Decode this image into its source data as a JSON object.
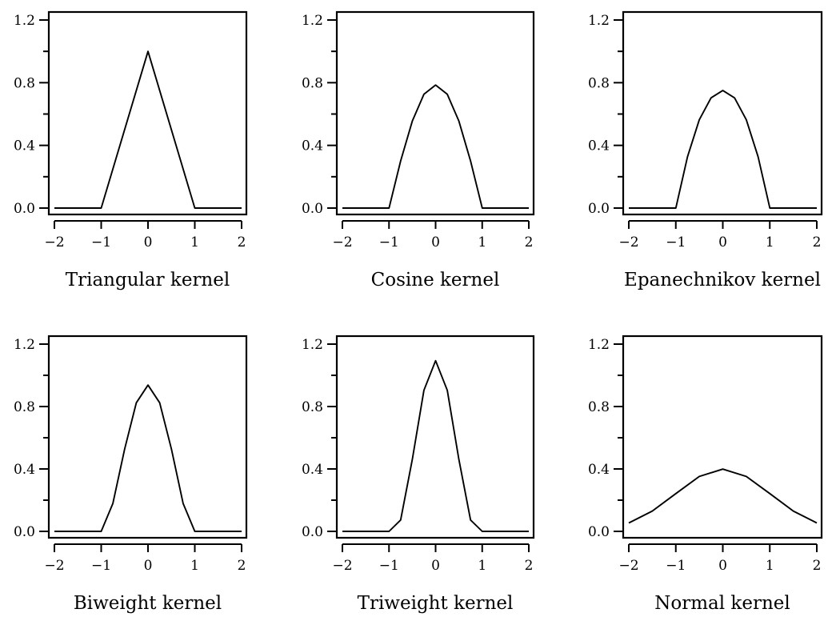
{
  "chart_data": [
    {
      "type": "line",
      "title": "Triangular kernel",
      "xlim": [
        -2,
        2
      ],
      "ylim": [
        0,
        1.2
      ],
      "xticks": [
        "−2",
        "−1",
        "0",
        "1",
        "2"
      ],
      "yticks": [
        "0.0",
        "0.4",
        "0.8",
        "1.2"
      ],
      "series": [
        {
          "x": [
            -2,
            -1,
            0,
            1,
            2
          ],
          "y": [
            0,
            0,
            1.0,
            0,
            0
          ]
        }
      ]
    },
    {
      "type": "line",
      "title": "Cosine kernel",
      "xlim": [
        -2,
        2
      ],
      "ylim": [
        0,
        1.2
      ],
      "xticks": [
        "−2",
        "−1",
        "0",
        "1",
        "2"
      ],
      "yticks": [
        "0.0",
        "0.4",
        "0.8",
        "1.2"
      ],
      "series": [
        {
          "x": [
            -2,
            -1,
            -0.75,
            -0.5,
            -0.25,
            0,
            0.25,
            0.5,
            0.75,
            1,
            2
          ],
          "y": [
            0,
            0,
            0.301,
            0.555,
            0.726,
            0.785,
            0.726,
            0.555,
            0.301,
            0,
            0
          ]
        }
      ]
    },
    {
      "type": "line",
      "title": "Epanechnikov kernel",
      "xlim": [
        -2,
        2
      ],
      "ylim": [
        0,
        1.2
      ],
      "xticks": [
        "−2",
        "−1",
        "0",
        "1",
        "2"
      ],
      "yticks": [
        "0.0",
        "0.4",
        "0.8",
        "1.2"
      ],
      "series": [
        {
          "x": [
            -2,
            -1,
            -0.75,
            -0.5,
            -0.25,
            0,
            0.25,
            0.5,
            0.75,
            1,
            2
          ],
          "y": [
            0,
            0,
            0.328,
            0.563,
            0.703,
            0.75,
            0.703,
            0.563,
            0.328,
            0,
            0
          ]
        }
      ]
    },
    {
      "type": "line",
      "title": "Biweight kernel",
      "xlim": [
        -2,
        2
      ],
      "ylim": [
        0,
        1.2
      ],
      "xticks": [
        "−2",
        "−1",
        "0",
        "1",
        "2"
      ],
      "yticks": [
        "0.0",
        "0.4",
        "0.8",
        "1.2"
      ],
      "series": [
        {
          "x": [
            -2,
            -1,
            -0.75,
            -0.5,
            -0.25,
            0,
            0.25,
            0.5,
            0.75,
            1,
            2
          ],
          "y": [
            0,
            0,
            0.179,
            0.527,
            0.824,
            0.9375,
            0.824,
            0.527,
            0.179,
            0,
            0
          ]
        }
      ]
    },
    {
      "type": "line",
      "title": "Triweight kernel",
      "xlim": [
        -2,
        2
      ],
      "ylim": [
        0,
        1.2
      ],
      "xticks": [
        "−2",
        "−1",
        "0",
        "1",
        "2"
      ],
      "yticks": [
        "0.0",
        "0.4",
        "0.8",
        "1.2"
      ],
      "series": [
        {
          "x": [
            -2,
            -1,
            -0.75,
            -0.5,
            -0.25,
            0,
            0.25,
            0.5,
            0.75,
            1,
            2
          ],
          "y": [
            0,
            0,
            0.073,
            0.461,
            0.904,
            1.094,
            0.904,
            0.461,
            0.073,
            0,
            0
          ]
        }
      ]
    },
    {
      "type": "line",
      "title": "Normal kernel",
      "xlim": [
        -2,
        2
      ],
      "ylim": [
        0,
        1.2
      ],
      "xticks": [
        "−2",
        "−1",
        "0",
        "1",
        "2"
      ],
      "yticks": [
        "0.0",
        "0.4",
        "0.8",
        "1.2"
      ],
      "series": [
        {
          "x": [
            -2,
            -1.5,
            -1,
            -0.5,
            0,
            0.5,
            1,
            1.5,
            2
          ],
          "y": [
            0.054,
            0.13,
            0.242,
            0.352,
            0.399,
            0.352,
            0.242,
            0.13,
            0.054
          ]
        }
      ]
    }
  ]
}
